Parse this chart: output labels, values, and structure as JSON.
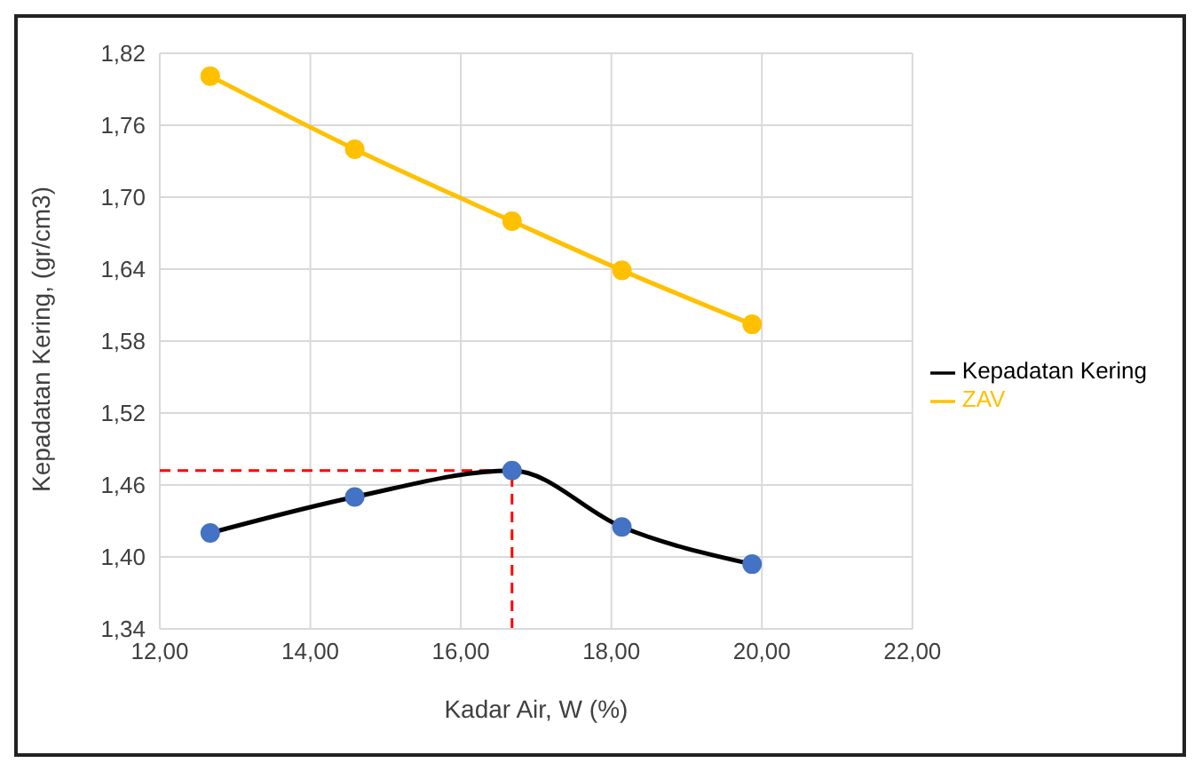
{
  "chart_data": {
    "type": "line",
    "xlabel": "Kadar Air, W (%)",
    "ylabel": "Kepadatan Kering, (gr/cm3)",
    "x": [
      12.67,
      14.59,
      16.68,
      18.14,
      19.87
    ],
    "series": [
      {
        "name": "Kepadatan Kering",
        "color": "#000000",
        "colors": [
          "#4472c4",
          "#4472c4",
          "#4472c4",
          "#4472c4",
          "#4472c4"
        ],
        "values": [
          1.42,
          1.45,
          1.472,
          1.425,
          1.394
        ]
      },
      {
        "name": "ZAV",
        "color": "#ffc000",
        "values": [
          1.801,
          1.74,
          1.68,
          1.639,
          1.594
        ]
      }
    ],
    "xlim": [
      12,
      22
    ],
    "xticks": [
      {
        "value": 12,
        "label": "12,00"
      },
      {
        "value": 14,
        "label": "14,00"
      },
      {
        "value": 16,
        "label": "16,00"
      },
      {
        "value": 18,
        "label": "18,00"
      },
      {
        "value": 20,
        "label": "20,00"
      },
      {
        "value": 22,
        "label": "22,00"
      }
    ],
    "ylim": [
      1.34,
      1.82
    ],
    "yticks": [
      {
        "value": 1.34,
        "label": "1,34"
      },
      {
        "value": 1.4,
        "label": "1,40"
      },
      {
        "value": 1.46,
        "label": "1,46"
      },
      {
        "value": 1.52,
        "label": "1,52"
      },
      {
        "value": 1.58,
        "label": "1,58"
      },
      {
        "value": 1.64,
        "label": "1,64"
      },
      {
        "value": 1.7,
        "label": "1,70"
      },
      {
        "value": 1.76,
        "label": "1,76"
      },
      {
        "value": 1.82,
        "label": "1,82"
      }
    ],
    "ref_lines": [
      {
        "axis": "y",
        "value": 1.472,
        "color": "#ff0000",
        "line_style": "dashed"
      },
      {
        "axis": "x",
        "value": 16.68,
        "color": "#ff0000",
        "line_style": "dashed"
      }
    ],
    "grid": true,
    "legend": "right",
    "marker": "circle",
    "line_style": "solid"
  }
}
